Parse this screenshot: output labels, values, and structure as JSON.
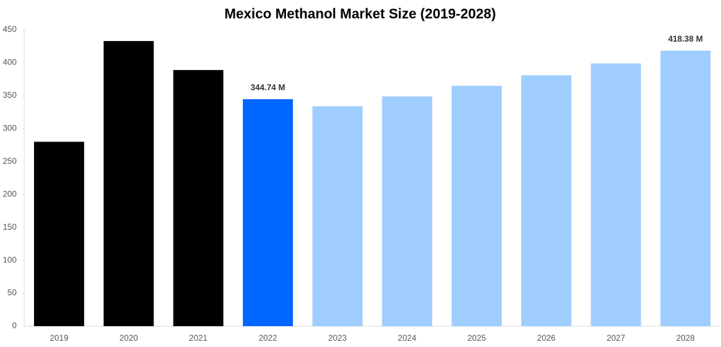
{
  "chart_data": {
    "type": "bar",
    "title": "Mexico Methanol Market Size (2019-2028)",
    "categories": [
      "2019",
      "2020",
      "2021",
      "2022",
      "2023",
      "2024",
      "2025",
      "2026",
      "2027",
      "2028"
    ],
    "values": [
      280,
      433,
      389,
      344.74,
      334,
      349,
      365,
      381,
      399,
      418.38
    ],
    "value_labels": [
      null,
      null,
      null,
      "344.74 M",
      null,
      null,
      null,
      null,
      null,
      "418.38 M"
    ],
    "colors": [
      "#000000",
      "#000000",
      "#000000",
      "#0066ff",
      "#a0cdff",
      "#a0cdff",
      "#a0cdff",
      "#a0cdff",
      "#a0cdff",
      "#a0cdff"
    ],
    "ylim": [
      0,
      450
    ],
    "yticks": [
      0,
      50,
      100,
      150,
      200,
      250,
      300,
      350,
      400,
      450
    ],
    "grid": false
  }
}
